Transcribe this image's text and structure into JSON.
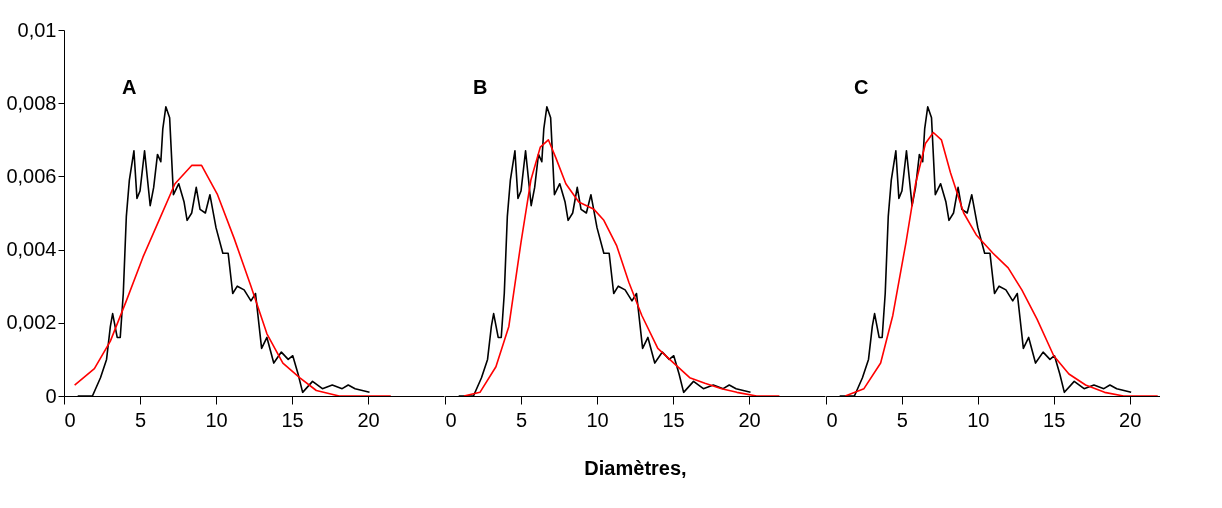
{
  "chart_data": [
    {
      "type": "line",
      "annotations": [
        "A"
      ],
      "xlim": [
        0,
        25
      ],
      "xticks": [
        0,
        5,
        10,
        15,
        20
      ],
      "ylim": [
        0,
        0.01
      ],
      "yticks": [
        0,
        {
          "value": 0.002,
          "label": "0,002"
        },
        {
          "value": 0.004,
          "label": "0,004"
        },
        {
          "value": 0.006,
          "label": "0,006"
        },
        {
          "value": 0.008,
          "label": "0,008"
        },
        {
          "value": 0.01,
          "label": "0,01"
        }
      ],
      "series": [
        {
          "color": "#000000",
          "x": [
            0.9,
            1.87,
            2.4,
            2.8,
            3.05,
            3.2,
            3.5,
            3.7,
            3.9,
            4.1,
            4.3,
            4.6,
            4.8,
            5.0,
            5.3,
            5.67,
            5.9,
            6.15,
            6.37,
            6.5,
            6.7,
            6.95,
            7.2,
            7.55,
            7.9,
            8.1,
            8.4,
            8.7,
            8.95,
            9.3,
            9.6,
            10.0,
            10.45,
            10.8,
            11.1,
            11.4,
            11.85,
            12.3,
            12.6,
            13.0,
            13.35,
            13.8,
            14.3,
            14.75,
            15.05,
            15.4,
            15.7,
            16.35,
            17.0,
            17.65,
            18.3,
            18.7,
            19.15,
            20.1
          ],
          "values": [
            0,
            0,
            0.0005,
            0.001,
            0.0019,
            0.00225,
            0.0016,
            0.0016,
            0.0028,
            0.0049,
            0.0059,
            0.0067,
            0.0054,
            0.0056,
            0.0067,
            0.0052,
            0.0057,
            0.0066,
            0.0064,
            0.0073,
            0.0079,
            0.0076,
            0.0055,
            0.0058,
            0.0053,
            0.0048,
            0.005,
            0.0057,
            0.0051,
            0.005,
            0.0055,
            0.0046,
            0.0039,
            0.0039,
            0.0028,
            0.003,
            0.0029,
            0.0026,
            0.0028,
            0.0013,
            0.0016,
            0.0009,
            0.0012,
            0.001,
            0.0011,
            0.0006,
            0.0001,
            0.0004,
            0.0002,
            0.0003,
            0.0002,
            0.0003,
            0.0002,
            0.0001
          ]
        },
        {
          "color": "#ff0000",
          "x": [
            0.7,
            2.0,
            3.05,
            4.1,
            5.2,
            6.25,
            7.3,
            8.4,
            9.05,
            10.1,
            11.2,
            12.3,
            13.35,
            14.4,
            15.5,
            16.6,
            18.1,
            21.5
          ],
          "values": [
            0.0003,
            0.00075,
            0.0015,
            0.0026,
            0.0038,
            0.0048,
            0.0058,
            0.0063,
            0.0063,
            0.0055,
            0.0043,
            0.003,
            0.0017,
            0.0009,
            0.0005,
            0.00015,
            0,
            0
          ]
        }
      ]
    },
    {
      "type": "line",
      "annotations": [
        "B"
      ],
      "xlabel": "Diamètres,",
      "xlim": [
        0,
        25
      ],
      "xticks": [
        0,
        5,
        10,
        15,
        20
      ],
      "ylim": [
        0,
        0.01
      ],
      "tick_labels": "x",
      "series": [
        {
          "color": "#000000",
          "x": [
            0.9,
            1.87,
            2.4,
            2.8,
            3.05,
            3.2,
            3.5,
            3.7,
            3.9,
            4.1,
            4.3,
            4.6,
            4.8,
            5.0,
            5.3,
            5.67,
            5.9,
            6.15,
            6.37,
            6.5,
            6.7,
            6.95,
            7.2,
            7.55,
            7.9,
            8.1,
            8.4,
            8.7,
            8.95,
            9.3,
            9.6,
            10.0,
            10.45,
            10.8,
            11.1,
            11.4,
            11.85,
            12.3,
            12.6,
            13.0,
            13.35,
            13.8,
            14.3,
            14.75,
            15.05,
            15.4,
            15.7,
            16.35,
            17.0,
            17.65,
            18.3,
            18.7,
            19.15,
            20.1
          ],
          "values": [
            0,
            0,
            0.0005,
            0.001,
            0.0019,
            0.00225,
            0.0016,
            0.0016,
            0.0028,
            0.0049,
            0.0059,
            0.0067,
            0.0054,
            0.0056,
            0.0067,
            0.0052,
            0.0057,
            0.0066,
            0.0064,
            0.0073,
            0.0079,
            0.0076,
            0.0055,
            0.0058,
            0.0053,
            0.0048,
            0.005,
            0.0057,
            0.0051,
            0.005,
            0.0055,
            0.0046,
            0.0039,
            0.0039,
            0.0028,
            0.003,
            0.0029,
            0.0026,
            0.0028,
            0.0013,
            0.0016,
            0.0009,
            0.0012,
            0.001,
            0.0011,
            0.0006,
            0.0001,
            0.0004,
            0.0002,
            0.0003,
            0.0002,
            0.0003,
            0.0002,
            0.0001
          ]
        },
        {
          "color": "#ff0000",
          "x": [
            1.25,
            2.3,
            3.35,
            4.2,
            5.0,
            5.65,
            6.27,
            6.8,
            7.3,
            7.95,
            8.8,
            9.8,
            10.45,
            11.3,
            12.1,
            12.95,
            14.0,
            15.05,
            16.1,
            17.1,
            18.2,
            19.2,
            20.5,
            22.0
          ],
          "values": [
            0,
            0.0001,
            0.0008,
            0.0019,
            0.0042,
            0.0059,
            0.0068,
            0.007,
            0.0065,
            0.0058,
            0.0053,
            0.0051,
            0.0048,
            0.0041,
            0.0031,
            0.0022,
            0.0013,
            0.0009,
            0.0005,
            0.00035,
            0.0002,
            0.0001,
            0,
            0
          ]
        }
      ]
    },
    {
      "type": "line",
      "annotations": [
        "C"
      ],
      "xlim": [
        0,
        22
      ],
      "xticks": [
        0,
        5,
        10,
        15,
        20
      ],
      "ylim": [
        0,
        0.01
      ],
      "tick_labels": "x",
      "series": [
        {
          "color": "#000000",
          "x": [
            0.9,
            1.87,
            2.4,
            2.8,
            3.05,
            3.2,
            3.5,
            3.7,
            3.9,
            4.1,
            4.3,
            4.6,
            4.8,
            5.0,
            5.3,
            5.67,
            5.9,
            6.15,
            6.37,
            6.5,
            6.7,
            6.95,
            7.2,
            7.55,
            7.9,
            8.1,
            8.4,
            8.7,
            8.95,
            9.3,
            9.6,
            10.0,
            10.45,
            10.8,
            11.1,
            11.4,
            11.85,
            12.3,
            12.6,
            13.0,
            13.35,
            13.8,
            14.3,
            14.75,
            15.05,
            15.4,
            15.7,
            16.35,
            17.0,
            17.65,
            18.3,
            18.7,
            19.15,
            20.1
          ],
          "values": [
            0,
            0,
            0.0005,
            0.001,
            0.0019,
            0.00225,
            0.0016,
            0.0016,
            0.0028,
            0.0049,
            0.0059,
            0.0067,
            0.0054,
            0.0056,
            0.0067,
            0.0052,
            0.0057,
            0.0066,
            0.0064,
            0.0073,
            0.0079,
            0.0076,
            0.0055,
            0.0058,
            0.0053,
            0.0048,
            0.005,
            0.0057,
            0.0051,
            0.005,
            0.0055,
            0.0046,
            0.0039,
            0.0039,
            0.0028,
            0.003,
            0.0029,
            0.0026,
            0.0028,
            0.0013,
            0.0016,
            0.0009,
            0.0012,
            0.001,
            0.0011,
            0.0006,
            0.0001,
            0.0004,
            0.0002,
            0.0003,
            0.0002,
            0.0003,
            0.0002,
            0.0001
          ]
        },
        {
          "color": "#ff0000",
          "x": [
            1.27,
            2.5,
            3.6,
            4.4,
            5.27,
            5.9,
            6.55,
            7.07,
            7.6,
            8.2,
            9.07,
            9.9,
            11.0,
            12.0,
            12.9,
            13.9,
            15.0,
            16.0,
            17.1,
            18.35,
            19.6,
            21.85
          ],
          "values": [
            0,
            0.0002,
            0.0009,
            0.0022,
            0.0042,
            0.0058,
            0.0069,
            0.0072,
            0.007,
            0.0061,
            0.005,
            0.0044,
            0.0039,
            0.0035,
            0.0029,
            0.0021,
            0.0011,
            0.0006,
            0.0003,
            0.0001,
            0,
            0
          ]
        }
      ]
    }
  ]
}
